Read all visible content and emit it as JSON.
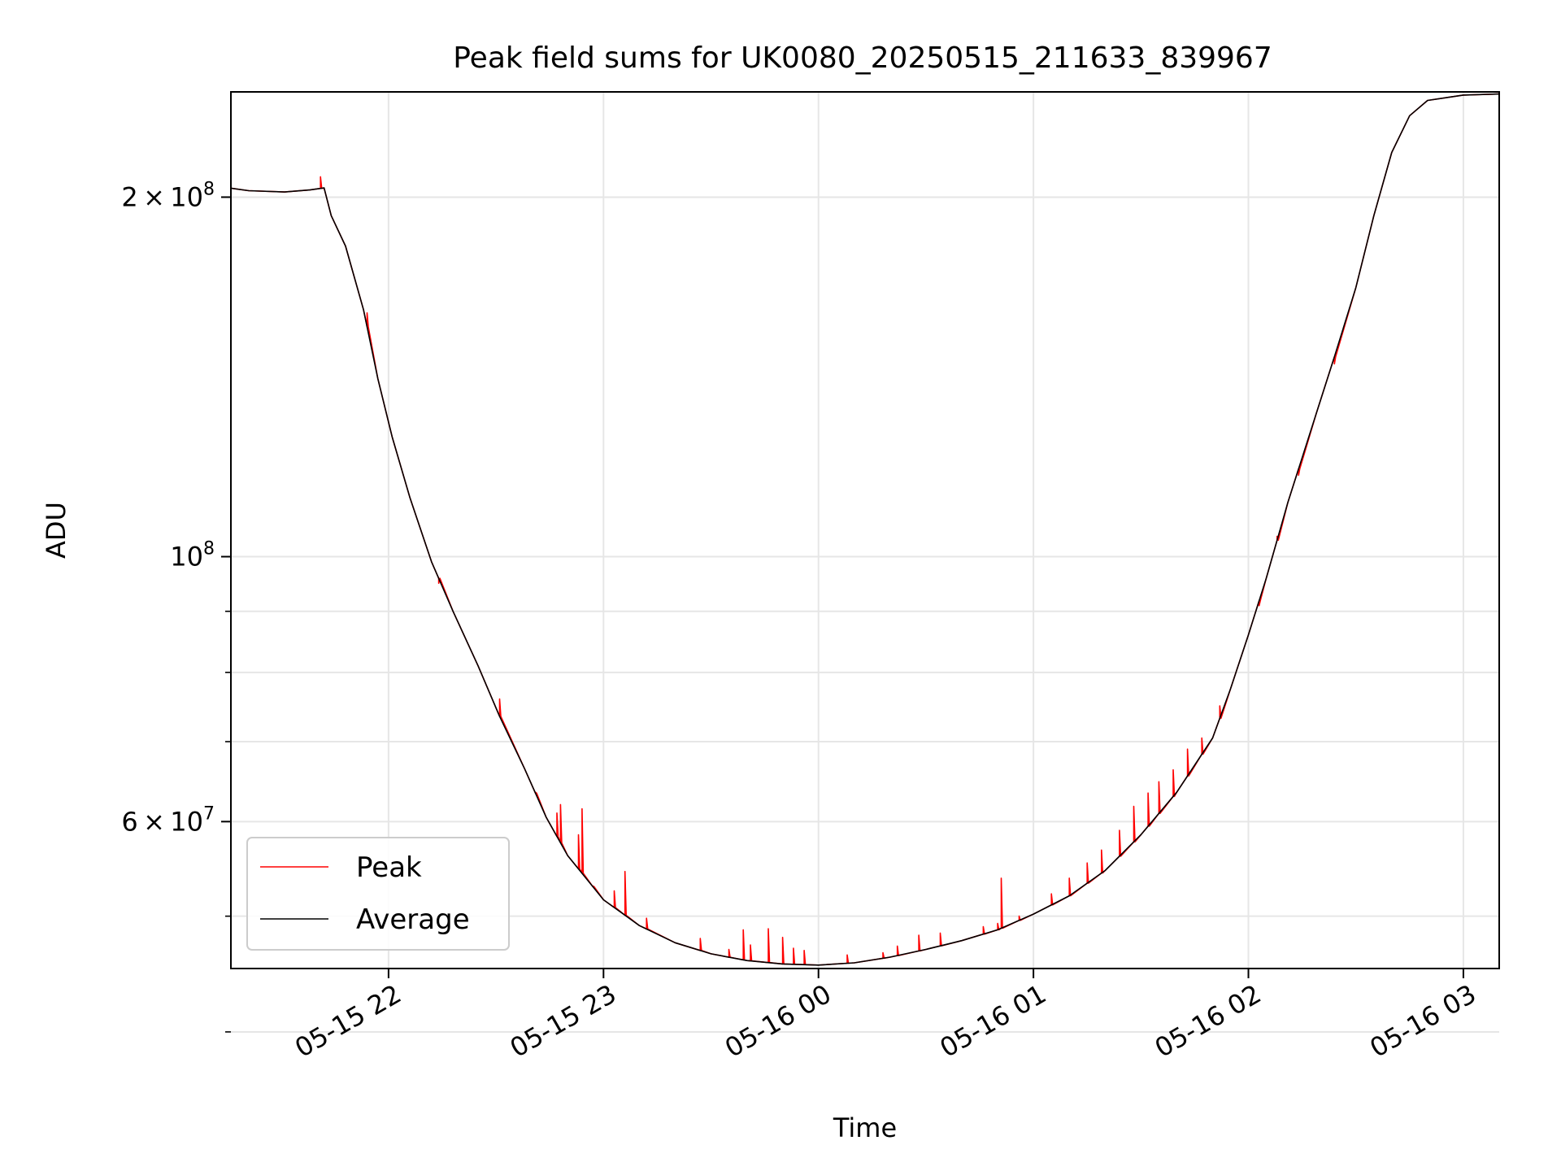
{
  "chart_data": {
    "type": "line",
    "title": "Peak field sums for UK0080_20250515_211633_839967",
    "xlabel": "Time",
    "ylabel": "ADU",
    "yscale": "log",
    "grid": true,
    "legend_placement": "lower-left",
    "x_tick_labels": [
      "05-15 22",
      "05-15 23",
      "05-16 00",
      "05-16 01",
      "05-16 02",
      "05-16 03"
    ],
    "x_tick_times": [
      "2025-05-15 22:00",
      "2025-05-15 23:00",
      "2025-05-16 00:00",
      "2025-05-16 01:00",
      "2025-05-16 02:00",
      "2025-05-16 03:00"
    ],
    "xlim": [
      "2025-05-15 21:16",
      "2025-05-16 03:10"
    ],
    "y_major_ticks": [
      {
        "value": 200000000,
        "mant": "2",
        "exp": "8"
      },
      {
        "value": 100000000,
        "mant": "",
        "exp": "8"
      },
      {
        "value": 60000000,
        "mant": "6",
        "exp": "7"
      }
    ],
    "y_minor_grid": [
      90000000,
      80000000,
      70000000,
      50000000,
      40000000,
      30000000
    ],
    "ylim": [
      45200000,
      245000000
    ],
    "colors": {
      "peak": "#ff0000",
      "average": "#000000",
      "grid": "#e6e6e6"
    },
    "series": [
      {
        "name": "Average",
        "color": "#000000",
        "points": [
          [
            "2025-05-15 21:16",
            203500000
          ],
          [
            "2025-05-15 21:21",
            202500000
          ],
          [
            "2025-05-15 21:31",
            202000000
          ],
          [
            "2025-05-15 21:38",
            202800000
          ],
          [
            "2025-05-15 21:42",
            203600000
          ],
          [
            "2025-05-15 21:44",
            193000000
          ],
          [
            "2025-05-15 21:48",
            182000000
          ],
          [
            "2025-05-15 21:53",
            161000000
          ],
          [
            "2025-05-15 21:57",
            141000000
          ],
          [
            "2025-05-15 22:01",
            126000000
          ],
          [
            "2025-05-15 22:06",
            112000000
          ],
          [
            "2025-05-15 22:12",
            99000000
          ],
          [
            "2025-05-15 22:18",
            90000000
          ],
          [
            "2025-05-15 22:25",
            81000000
          ],
          [
            "2025-05-15 22:31",
            73500000
          ],
          [
            "2025-05-15 22:38",
            66400000
          ],
          [
            "2025-05-15 22:44",
            60500000
          ],
          [
            "2025-05-15 22:50",
            56200000
          ],
          [
            "2025-05-15 23:00",
            51600000
          ],
          [
            "2025-05-15 23:10",
            49100000
          ],
          [
            "2025-05-15 23:20",
            47500000
          ],
          [
            "2025-05-15 23:30",
            46500000
          ],
          [
            "2025-05-15 23:40",
            45900000
          ],
          [
            "2025-05-15 23:50",
            45600000
          ],
          [
            "2025-05-16 00:00",
            45500000
          ],
          [
            "2025-05-16 00:10",
            45700000
          ],
          [
            "2025-05-16 00:20",
            46200000
          ],
          [
            "2025-05-16 00:30",
            46900000
          ],
          [
            "2025-05-16 00:40",
            47700000
          ],
          [
            "2025-05-16 00:50",
            48700000
          ],
          [
            "2025-05-16 01:00",
            50200000
          ],
          [
            "2025-05-16 01:10",
            52000000
          ],
          [
            "2025-05-16 01:20",
            54600000
          ],
          [
            "2025-05-16 01:30",
            58500000
          ],
          [
            "2025-05-16 01:40",
            63500000
          ],
          [
            "2025-05-16 01:50",
            70500000
          ],
          [
            "2025-05-16 01:55",
            77500000
          ],
          [
            "2025-05-16 02:00",
            86000000
          ],
          [
            "2025-05-16 02:05",
            96000000
          ],
          [
            "2025-05-16 02:11",
            111000000
          ],
          [
            "2025-05-16 02:19",
            132000000
          ],
          [
            "2025-05-16 02:24",
            147000000
          ],
          [
            "2025-05-16 02:30",
            168000000
          ],
          [
            "2025-05-16 02:35",
            193000000
          ],
          [
            "2025-05-16 02:40",
            218000000
          ],
          [
            "2025-05-16 02:45",
            234000000
          ],
          [
            "2025-05-16 02:50",
            241000000
          ],
          [
            "2025-05-16 03:00",
            243500000
          ],
          [
            "2025-05-16 03:10",
            244000000
          ]
        ]
      },
      {
        "name": "Peak",
        "color": "#ff0000",
        "spikes": [
          [
            "2025-05-15 21:41",
            208000000
          ],
          [
            "2025-05-15 21:54",
            160000000
          ],
          [
            "2025-05-15 22:14",
            95000000
          ],
          [
            "2025-05-15 22:31",
            76000000
          ],
          [
            "2025-05-15 22:41",
            63500000
          ],
          [
            "2025-05-15 22:47",
            61000000
          ],
          [
            "2025-05-15 22:48",
            62000000
          ],
          [
            "2025-05-15 22:53",
            58500000
          ],
          [
            "2025-05-15 22:54",
            61500000
          ],
          [
            "2025-05-15 22:57",
            53000000
          ],
          [
            "2025-05-15 23:03",
            52500000
          ],
          [
            "2025-05-15 23:06",
            54500000
          ],
          [
            "2025-05-15 23:12",
            49800000
          ],
          [
            "2025-05-15 23:27",
            47900000
          ],
          [
            "2025-05-15 23:35",
            46900000
          ],
          [
            "2025-05-15 23:39",
            48700000
          ],
          [
            "2025-05-15 23:41",
            47300000
          ],
          [
            "2025-05-15 23:46",
            48800000
          ],
          [
            "2025-05-15 23:50",
            48000000
          ],
          [
            "2025-05-15 23:53",
            47000000
          ],
          [
            "2025-05-15 23:56",
            46800000
          ],
          [
            "2025-05-16 00:08",
            46400000
          ],
          [
            "2025-05-16 00:18",
            46600000
          ],
          [
            "2025-05-16 00:22",
            47200000
          ],
          [
            "2025-05-16 00:28",
            48200000
          ],
          [
            "2025-05-16 00:34",
            48400000
          ],
          [
            "2025-05-16 00:46",
            49000000
          ],
          [
            "2025-05-16 00:50",
            49300000
          ],
          [
            "2025-05-16 00:51",
            53800000
          ],
          [
            "2025-05-16 00:56",
            50000000
          ],
          [
            "2025-05-16 01:05",
            52200000
          ],
          [
            "2025-05-16 01:10",
            53800000
          ],
          [
            "2025-05-16 01:15",
            55400000
          ],
          [
            "2025-05-16 01:19",
            56800000
          ],
          [
            "2025-05-16 01:24",
            59000000
          ],
          [
            "2025-05-16 01:28",
            61800000
          ],
          [
            "2025-05-16 01:32",
            63400000
          ],
          [
            "2025-05-16 01:35",
            64800000
          ],
          [
            "2025-05-16 01:39",
            66300000
          ],
          [
            "2025-05-16 01:43",
            69000000
          ],
          [
            "2025-05-16 01:47",
            70500000
          ],
          [
            "2025-05-16 01:52",
            75000000
          ],
          [
            "2025-05-16 02:03",
            91000000
          ],
          [
            "2025-05-16 02:08",
            104000000
          ],
          [
            "2025-05-16 02:14",
            117000000
          ],
          [
            "2025-05-16 02:24",
            145000000
          ]
        ]
      }
    ],
    "legend": [
      {
        "label": "Peak",
        "color": "#ff0000"
      },
      {
        "label": "Average",
        "color": "#000000"
      }
    ]
  }
}
